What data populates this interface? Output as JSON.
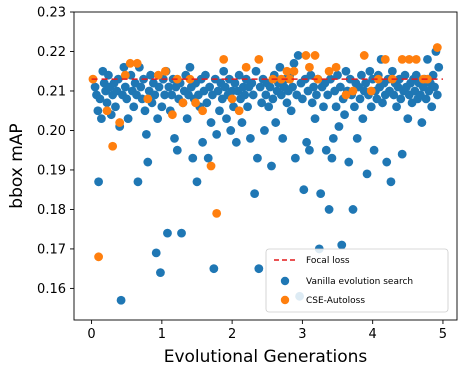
{
  "chart_data": {
    "type": "scatter",
    "xlabel": "Evolutional Generations",
    "ylabel": "bbox mAP",
    "xlim": [
      -0.25,
      5.2
    ],
    "ylim": [
      0.152,
      0.23
    ],
    "xticks": [
      0,
      1,
      2,
      3,
      4,
      5
    ],
    "yticks": [
      0.16,
      0.17,
      0.18,
      0.19,
      0.2,
      0.21,
      0.22,
      0.23
    ],
    "ytick_labels": [
      "0.16",
      "0.17",
      "0.18",
      "0.19",
      "0.20",
      "0.21",
      "0.22",
      "0.23"
    ],
    "grid": false,
    "legend_position": "bottom-right",
    "focal_loss": {
      "name": "Focal loss",
      "value": 0.213,
      "color": "#e41a1c",
      "style": "dashed"
    },
    "series": [
      {
        "name": "Vanilla evolution search",
        "color": "#1f77b4",
        "points": [
          [
            0.05,
            0.211
          ],
          [
            0.07,
            0.209
          ],
          [
            0.09,
            0.205
          ],
          [
            0.1,
            0.187
          ],
          [
            0.12,
            0.208
          ],
          [
            0.14,
            0.203
          ],
          [
            0.16,
            0.215
          ],
          [
            0.18,
            0.212
          ],
          [
            0.2,
            0.21
          ],
          [
            0.22,
            0.207
          ],
          [
            0.24,
            0.214
          ],
          [
            0.26,
            0.211
          ],
          [
            0.28,
            0.204
          ],
          [
            0.3,
            0.209
          ],
          [
            0.32,
            0.212
          ],
          [
            0.34,
            0.206
          ],
          [
            0.36,
            0.21
          ],
          [
            0.38,
            0.213
          ],
          [
            0.4,
            0.201
          ],
          [
            0.42,
            0.157
          ],
          [
            0.44,
            0.209
          ],
          [
            0.46,
            0.216
          ],
          [
            0.48,
            0.211
          ],
          [
            0.5,
            0.208
          ],
          [
            0.52,
            0.203
          ],
          [
            0.56,
            0.214
          ],
          [
            0.58,
            0.21
          ],
          [
            0.6,
            0.206
          ],
          [
            0.62,
            0.212
          ],
          [
            0.64,
            0.209
          ],
          [
            0.66,
            0.187
          ],
          [
            0.68,
            0.216
          ],
          [
            0.7,
            0.211
          ],
          [
            0.72,
            0.208
          ],
          [
            0.74,
            0.213
          ],
          [
            0.76,
            0.205
          ],
          [
            0.78,
            0.199
          ],
          [
            0.8,
            0.192
          ],
          [
            0.82,
            0.21
          ],
          [
            0.84,
            0.214
          ],
          [
            0.86,
            0.207
          ],
          [
            0.88,
            0.212
          ],
          [
            0.9,
            0.209
          ],
          [
            0.92,
            0.169
          ],
          [
            0.94,
            0.203
          ],
          [
            0.96,
            0.211
          ],
          [
            0.98,
            0.164
          ],
          [
            1.0,
            0.206
          ],
          [
            1.02,
            0.213
          ],
          [
            1.04,
            0.209
          ],
          [
            1.06,
            0.215
          ],
          [
            1.08,
            0.174
          ],
          [
            1.1,
            0.211
          ],
          [
            1.12,
            0.205
          ],
          [
            1.14,
            0.209
          ],
          [
            1.16,
            0.213
          ],
          [
            1.18,
            0.198
          ],
          [
            1.2,
            0.211
          ],
          [
            1.22,
            0.195
          ],
          [
            1.24,
            0.208
          ],
          [
            1.26,
            0.212
          ],
          [
            1.28,
            0.174
          ],
          [
            1.3,
            0.207
          ],
          [
            1.32,
            0.21
          ],
          [
            1.34,
            0.214
          ],
          [
            1.36,
            0.203
          ],
          [
            1.38,
            0.209
          ],
          [
            1.4,
            0.216
          ],
          [
            1.42,
            0.211
          ],
          [
            1.44,
            0.193
          ],
          [
            1.46,
            0.208
          ],
          [
            1.48,
            0.212
          ],
          [
            1.5,
            0.187
          ],
          [
            1.52,
            0.209
          ],
          [
            1.54,
            0.206
          ],
          [
            1.56,
            0.213
          ],
          [
            1.58,
            0.197
          ],
          [
            1.6,
            0.21
          ],
          [
            1.62,
            0.214
          ],
          [
            1.64,
            0.207
          ],
          [
            1.66,
            0.193
          ],
          [
            1.68,
            0.211
          ],
          [
            1.7,
            0.202
          ],
          [
            1.72,
            0.209
          ],
          [
            1.74,
            0.165
          ],
          [
            1.76,
            0.213
          ],
          [
            1.78,
            0.199
          ],
          [
            1.8,
            0.21
          ],
          [
            1.82,
            0.205
          ],
          [
            1.84,
            0.212
          ],
          [
            1.86,
            0.208
          ],
          [
            1.88,
            0.215
          ],
          [
            1.9,
            0.211
          ],
          [
            1.92,
            0.203
          ],
          [
            1.94,
            0.209
          ],
          [
            1.96,
            0.213
          ],
          [
            1.98,
            0.2
          ],
          [
            2.0,
            0.21
          ],
          [
            2.02,
            0.206
          ],
          [
            2.04,
            0.212
          ],
          [
            2.06,
            0.197
          ],
          [
            2.08,
            0.21
          ],
          [
            2.1,
            0.214
          ],
          [
            2.12,
            0.208
          ],
          [
            2.14,
            0.202
          ],
          [
            2.16,
            0.211
          ],
          [
            2.18,
            0.209
          ],
          [
            2.2,
            0.213
          ],
          [
            2.22,
            0.206
          ],
          [
            2.24,
            0.211
          ],
          [
            2.26,
            0.198
          ],
          [
            2.28,
            0.212
          ],
          [
            2.3,
            0.209
          ],
          [
            2.32,
            0.184
          ],
          [
            2.34,
            0.215
          ],
          [
            2.36,
            0.193
          ],
          [
            2.38,
            0.165
          ],
          [
            2.4,
            0.211
          ],
          [
            2.42,
            0.207
          ],
          [
            2.44,
            0.213
          ],
          [
            2.46,
            0.2
          ],
          [
            2.48,
            0.209
          ],
          [
            2.5,
            0.212
          ],
          [
            2.52,
            0.206
          ],
          [
            2.54,
            0.211
          ],
          [
            2.56,
            0.191
          ],
          [
            2.58,
            0.208
          ],
          [
            2.6,
            0.214
          ],
          [
            2.62,
            0.202
          ],
          [
            2.64,
            0.21
          ],
          [
            2.66,
            0.212
          ],
          [
            2.68,
            0.216
          ],
          [
            2.7,
            0.209
          ],
          [
            2.72,
            0.198
          ],
          [
            2.74,
            0.211
          ],
          [
            2.76,
            0.213
          ],
          [
            2.78,
            0.207
          ],
          [
            2.8,
            0.21
          ],
          [
            2.82,
            0.214
          ],
          [
            2.84,
            0.205
          ],
          [
            2.86,
            0.211
          ],
          [
            2.88,
            0.217
          ],
          [
            2.9,
            0.193
          ],
          [
            2.92,
            0.209
          ],
          [
            2.94,
            0.219
          ],
          [
            2.96,
            0.158
          ],
          [
            2.98,
            0.212
          ],
          [
            3.0,
            0.208
          ],
          [
            3.02,
            0.185
          ],
          [
            3.04,
            0.213
          ],
          [
            3.06,
            0.197
          ],
          [
            3.08,
            0.21
          ],
          [
            3.1,
            0.195
          ],
          [
            3.12,
            0.214
          ],
          [
            3.14,
            0.207
          ],
          [
            3.16,
            0.211
          ],
          [
            3.18,
            0.203
          ],
          [
            3.2,
            0.209
          ],
          [
            3.22,
            0.213
          ],
          [
            3.24,
            0.17
          ],
          [
            3.26,
            0.184
          ],
          [
            3.28,
            0.211
          ],
          [
            3.3,
            0.206
          ],
          [
            3.32,
            0.212
          ],
          [
            3.34,
            0.195
          ],
          [
            3.36,
            0.209
          ],
          [
            3.38,
            0.18
          ],
          [
            3.4,
            0.213
          ],
          [
            3.42,
            0.193
          ],
          [
            3.44,
            0.198
          ],
          [
            3.46,
            0.21
          ],
          [
            3.48,
            0.206
          ],
          [
            3.5,
            0.214
          ],
          [
            3.52,
            0.201
          ],
          [
            3.54,
            0.211
          ],
          [
            3.56,
            0.171
          ],
          [
            3.58,
            0.208
          ],
          [
            3.6,
            0.204
          ],
          [
            3.62,
            0.215
          ],
          [
            3.64,
            0.21
          ],
          [
            3.66,
            0.192
          ],
          [
            3.68,
            0.213
          ],
          [
            3.7,
            0.209
          ],
          [
            3.72,
            0.18
          ],
          [
            3.74,
            0.206
          ],
          [
            3.76,
            0.212
          ],
          [
            3.78,
            0.198
          ],
          [
            3.8,
            0.211
          ],
          [
            3.82,
            0.208
          ],
          [
            3.84,
            0.214
          ],
          [
            3.86,
            0.203
          ],
          [
            3.88,
            0.21
          ],
          [
            3.9,
            0.212
          ],
          [
            3.92,
            0.189
          ],
          [
            3.94,
            0.209
          ],
          [
            3.96,
            0.215
          ],
          [
            3.98,
            0.206
          ],
          [
            4.0,
            0.213
          ],
          [
            4.02,
            0.195
          ],
          [
            4.04,
            0.21
          ],
          [
            4.06,
            0.208
          ],
          [
            4.08,
            0.214
          ],
          [
            4.1,
            0.211
          ],
          [
            4.12,
            0.218
          ],
          [
            4.14,
            0.207
          ],
          [
            4.16,
            0.212
          ],
          [
            4.18,
            0.209
          ],
          [
            4.2,
            0.192
          ],
          [
            4.22,
            0.213
          ],
          [
            4.24,
            0.21
          ],
          [
            4.26,
            0.187
          ],
          [
            4.28,
            0.215
          ],
          [
            4.3,
            0.209
          ],
          [
            4.32,
            0.212
          ],
          [
            4.34,
            0.206
          ],
          [
            4.36,
            0.211
          ],
          [
            4.38,
            0.213
          ],
          [
            4.4,
            0.208
          ],
          [
            4.42,
            0.194
          ],
          [
            4.44,
            0.21
          ],
          [
            4.46,
            0.214
          ],
          [
            4.48,
            0.211
          ],
          [
            4.5,
            0.203
          ],
          [
            4.52,
            0.209
          ],
          [
            4.54,
            0.212
          ],
          [
            4.56,
            0.207
          ],
          [
            4.58,
            0.213
          ],
          [
            4.6,
            0.21
          ],
          [
            4.62,
            0.214
          ],
          [
            4.64,
            0.208
          ],
          [
            4.66,
            0.212
          ],
          [
            4.68,
            0.209
          ],
          [
            4.7,
            0.202
          ],
          [
            4.72,
            0.211
          ],
          [
            4.74,
            0.213
          ],
          [
            4.76,
            0.208
          ],
          [
            4.78,
            0.218
          ],
          [
            4.8,
            0.21
          ],
          [
            4.82,
            0.212
          ],
          [
            4.84,
            0.206
          ],
          [
            4.86,
            0.214
          ],
          [
            4.88,
            0.211
          ],
          [
            4.9,
            0.22
          ],
          [
            4.92,
            0.209
          ],
          [
            4.94,
            0.216
          ]
        ]
      },
      {
        "name": "CSE-Autoloss",
        "color": "#ff7f0e",
        "points": [
          [
            0.02,
            0.213
          ],
          [
            0.1,
            0.168
          ],
          [
            0.22,
            0.205
          ],
          [
            0.3,
            0.196
          ],
          [
            0.4,
            0.202
          ],
          [
            0.48,
            0.214
          ],
          [
            0.55,
            0.217
          ],
          [
            0.65,
            0.217
          ],
          [
            0.8,
            0.208
          ],
          [
            0.95,
            0.214
          ],
          [
            1.05,
            0.215
          ],
          [
            1.15,
            0.204
          ],
          [
            1.22,
            0.213
          ],
          [
            1.3,
            0.207
          ],
          [
            1.4,
            0.213
          ],
          [
            1.48,
            0.207
          ],
          [
            1.58,
            0.205
          ],
          [
            1.7,
            0.191
          ],
          [
            1.78,
            0.179
          ],
          [
            1.88,
            0.218
          ],
          [
            2.0,
            0.208
          ],
          [
            2.1,
            0.205
          ],
          [
            2.2,
            0.216
          ],
          [
            2.38,
            0.218
          ],
          [
            2.58,
            0.213
          ],
          [
            2.7,
            0.213
          ],
          [
            2.78,
            0.215
          ],
          [
            2.82,
            0.213
          ],
          [
            2.88,
            0.215
          ],
          [
            3.05,
            0.219
          ],
          [
            3.1,
            0.216
          ],
          [
            3.18,
            0.219
          ],
          [
            3.22,
            0.213
          ],
          [
            3.38,
            0.215
          ],
          [
            3.48,
            0.216
          ],
          [
            3.62,
            0.209
          ],
          [
            3.72,
            0.21
          ],
          [
            3.88,
            0.219
          ],
          [
            3.98,
            0.21
          ],
          [
            4.08,
            0.213
          ],
          [
            4.18,
            0.218
          ],
          [
            4.28,
            0.213
          ],
          [
            4.42,
            0.218
          ],
          [
            4.52,
            0.218
          ],
          [
            4.62,
            0.218
          ],
          [
            4.72,
            0.213
          ],
          [
            4.78,
            0.213
          ],
          [
            4.92,
            0.221
          ]
        ]
      }
    ]
  }
}
